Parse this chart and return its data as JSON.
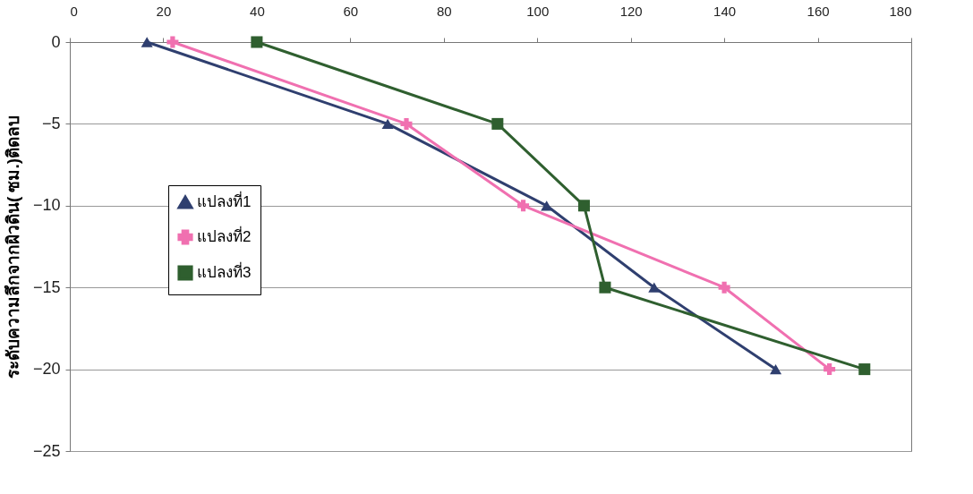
{
  "chart_data": {
    "type": "line",
    "ylabel": "ระดับความลึกจากผิวดิน( ซม.)ติดลบ",
    "xlim": [
      0,
      180
    ],
    "xticks": [
      0,
      20,
      40,
      60,
      80,
      100,
      120,
      140,
      160,
      180
    ],
    "ylim": [
      -25,
      0
    ],
    "yticks": [
      -25,
      -20,
      -15,
      -10,
      -5,
      0
    ],
    "grid": "y",
    "legend": "left",
    "series": [
      {
        "name": "แปลงที่1",
        "color": "#2f3f6f",
        "marker": "triangle",
        "x": [
          16.5,
          68,
          102,
          125,
          151
        ],
        "values": [
          0,
          -5,
          -10,
          -15,
          -20
        ]
      },
      {
        "name": "แปลงที่2",
        "color": "#f070b0",
        "marker": "cross",
        "x": [
          22,
          72,
          97,
          140,
          162.5
        ],
        "values": [
          0,
          -5,
          -10,
          -15,
          -20
        ]
      },
      {
        "name": "แปลงที่3",
        "color": "#2f5f2f",
        "marker": "square",
        "x": [
          40,
          91.5,
          110,
          114.5,
          170
        ],
        "values": [
          0,
          -5,
          -10,
          -15,
          -20
        ]
      }
    ]
  }
}
